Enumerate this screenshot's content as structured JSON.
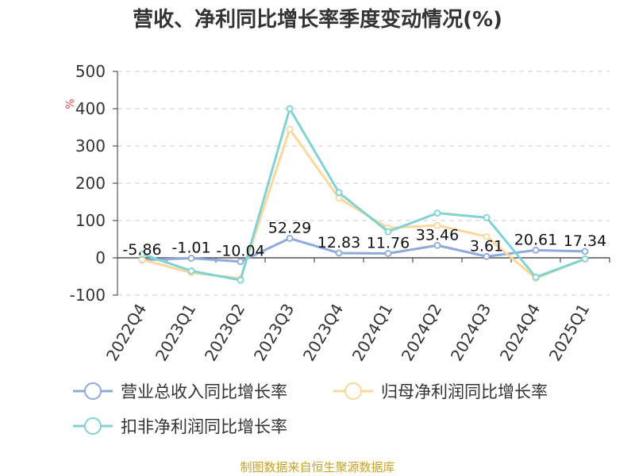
{
  "colors": {
    "revenue": "#8ea9db",
    "net_profit": "#fbd79b",
    "deducted_net_profit": "#7fd3d3",
    "grid": "#cccccc",
    "axis": "#333333",
    "source": "#c9a227",
    "unit": "#d9534f"
  },
  "source_text": "制图数据来自恒生聚源数据库",
  "chart_data": {
    "type": "line",
    "title": "营收、净利同比增长率季度变动情况(%)",
    "ylabel": "%",
    "xlabel": "",
    "ylim": [
      -100,
      500
    ],
    "yticks": [
      -100,
      0,
      100,
      200,
      300,
      400,
      500
    ],
    "grid": true,
    "legend_position": "bottom",
    "categories": [
      "2022Q4",
      "2023Q1",
      "2023Q2",
      "2023Q3",
      "2023Q4",
      "2024Q1",
      "2024Q2",
      "2024Q3",
      "2024Q4",
      "2025Q1"
    ],
    "series": [
      {
        "name": "营业总收入同比增长率",
        "color_key": "revenue",
        "values": [
          -5.86,
          -1.01,
          -10.04,
          52.29,
          12.83,
          11.76,
          33.46,
          3.61,
          20.61,
          17.34
        ],
        "labels": [
          "-5.86",
          "-1.01",
          "-10.04",
          "52.29",
          "12.83",
          "11.76",
          "33.46",
          "3.61",
          "20.61",
          "17.34"
        ]
      },
      {
        "name": "归母净利润同比增长率",
        "color_key": "net_profit",
        "values": [
          -5,
          -40,
          -55,
          345,
          160,
          80,
          87,
          57,
          -55,
          -3
        ]
      },
      {
        "name": "扣非净利润同比增长率",
        "color_key": "deducted_net_profit",
        "values": [
          10,
          -35,
          -60,
          400,
          175,
          70,
          120,
          108,
          -52,
          -3
        ]
      }
    ]
  }
}
